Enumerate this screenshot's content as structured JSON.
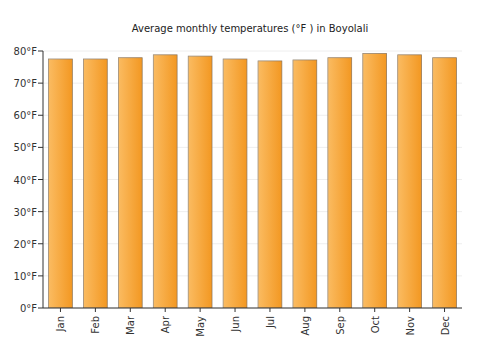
{
  "chart_data": {
    "type": "bar",
    "title": "Average monthly temperatures (°F ) in Boyolali",
    "categories": [
      "Jan",
      "Feb",
      "Mar",
      "Apr",
      "May",
      "Jun",
      "Jul",
      "Aug",
      "Sep",
      "Oct",
      "Nov",
      "Dec"
    ],
    "values": [
      77.5,
      77.5,
      77.9,
      78.8,
      78.4,
      77.5,
      76.9,
      77.2,
      77.9,
      79.2,
      78.8,
      77.9
    ],
    "color": "#f9a52d",
    "ylim": [
      0,
      80
    ],
    "yticks": [
      {
        "value": 0,
        "label": "0°F"
      },
      {
        "value": 10,
        "label": "10°F"
      },
      {
        "value": 20,
        "label": "20°F"
      },
      {
        "value": 30,
        "label": "30°F"
      },
      {
        "value": 40,
        "label": "40°F"
      },
      {
        "value": 50,
        "label": "50°F"
      },
      {
        "value": 60,
        "label": "60°F"
      },
      {
        "value": 70,
        "label": "70°F"
      },
      {
        "value": 80,
        "label": "80°F"
      }
    ],
    "grid": true
  }
}
